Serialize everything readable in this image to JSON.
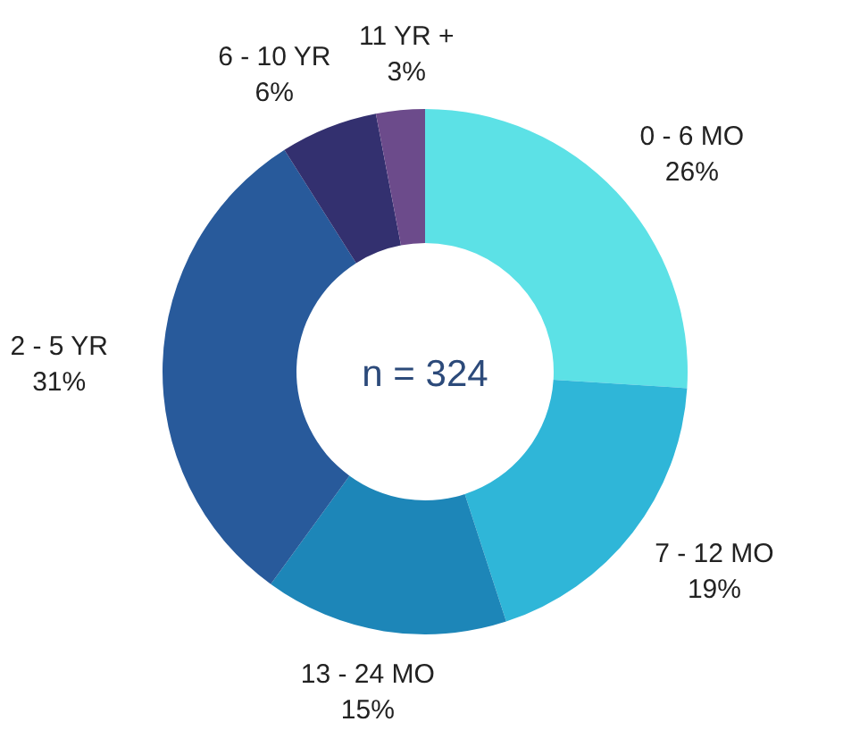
{
  "chart_data": {
    "type": "donut",
    "categories": [
      "0 - 6 MO",
      "7 - 12 MO",
      "13 - 24 MO",
      "2 - 5 YR",
      "6 - 10 YR",
      "11 YR +"
    ],
    "values": [
      26,
      19,
      15,
      31,
      6,
      3
    ],
    "colors": [
      "#5ce1e6",
      "#2fb6d8",
      "#1d86b8",
      "#285a9b",
      "#33306f",
      "#6c4b8b"
    ],
    "value_labels": [
      "26%",
      "19%",
      "15%",
      "31%",
      "6%",
      "3%"
    ],
    "annotations": [
      "n = 324"
    ]
  }
}
